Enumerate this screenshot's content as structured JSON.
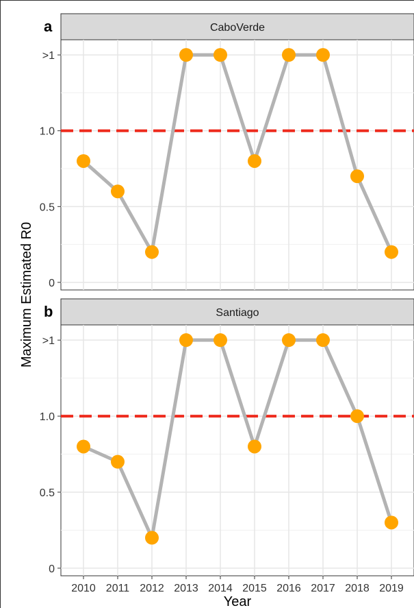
{
  "chart_data": {
    "type": "line",
    "ylabel": "Maximum Estimated R0",
    "xlabel": "Year",
    "x": [
      2010,
      2011,
      2012,
      2013,
      2014,
      2015,
      2016,
      2017,
      2018,
      2019
    ],
    "y_ticks": [
      "0",
      "0.5",
      "1.0",
      ">1"
    ],
    "y_tick_values": [
      0,
      0.5,
      1.0,
      1.5
    ],
    "ylim": [
      -0.05,
      1.6
    ],
    "grid": true,
    "reference_line": {
      "y": 1.0,
      "style": "dashed",
      "color": "#ee2b1e"
    },
    "line_color": "#b3b3b3",
    "point_color": "#ffa500",
    "panels": [
      {
        "letter": "a",
        "strip_label": "CaboVerde",
        "values": [
          0.8,
          0.6,
          0.2,
          1.5,
          1.5,
          0.8,
          1.5,
          1.5,
          0.7,
          0.2
        ]
      },
      {
        "letter": "b",
        "strip_label": "Santiago",
        "values": [
          0.8,
          0.7,
          0.2,
          1.5,
          1.5,
          0.8,
          1.5,
          1.5,
          1.0,
          0.3
        ]
      }
    ]
  }
}
